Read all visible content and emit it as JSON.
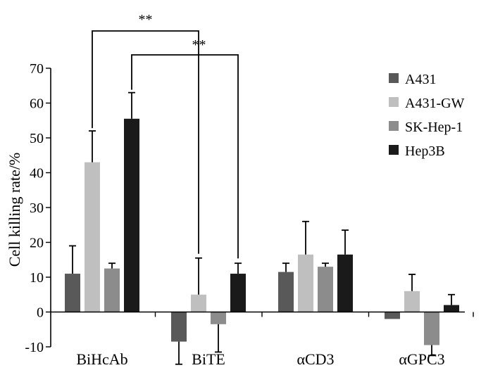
{
  "chart_data": {
    "type": "bar",
    "title": "",
    "xlabel": "",
    "ylabel": "Cell killing rate/%",
    "ylim": [
      -10,
      70
    ],
    "yticks": [
      -10,
      0,
      10,
      20,
      30,
      40,
      50,
      60,
      70
    ],
    "categories": [
      "BiHcAb",
      "BiTE",
      "αCD3",
      "αGPC3"
    ],
    "series": [
      {
        "name": "A431",
        "color": "#595959",
        "values": [
          11,
          -8.5,
          11.5,
          -2
        ],
        "errors": [
          8,
          6.5,
          2.5,
          0
        ]
      },
      {
        "name": "A431-GW",
        "color": "#bfbfbf",
        "values": [
          43,
          5,
          16.5,
          6
        ],
        "errors": [
          9,
          10.5,
          9.5,
          4.8
        ]
      },
      {
        "name": "SK-Hep-1",
        "color": "#8c8c8c",
        "values": [
          12.5,
          -3.5,
          13,
          -9.5
        ],
        "errors": [
          1.5,
          8,
          1,
          3
        ]
      },
      {
        "name": "Hep3B",
        "color": "#1a1a1a",
        "values": [
          55.5,
          11,
          16.5,
          2
        ],
        "errors": [
          7.5,
          3,
          7,
          3
        ]
      }
    ],
    "significance": [
      {
        "label": "**",
        "from": "BiHcAb / A431-GW",
        "to": "BiTE / A431-GW"
      },
      {
        "label": "**",
        "from": "BiHcAb / Hep3B",
        "to": "BiTE / Hep3B"
      }
    ],
    "grid": false,
    "legend": "top-right"
  }
}
